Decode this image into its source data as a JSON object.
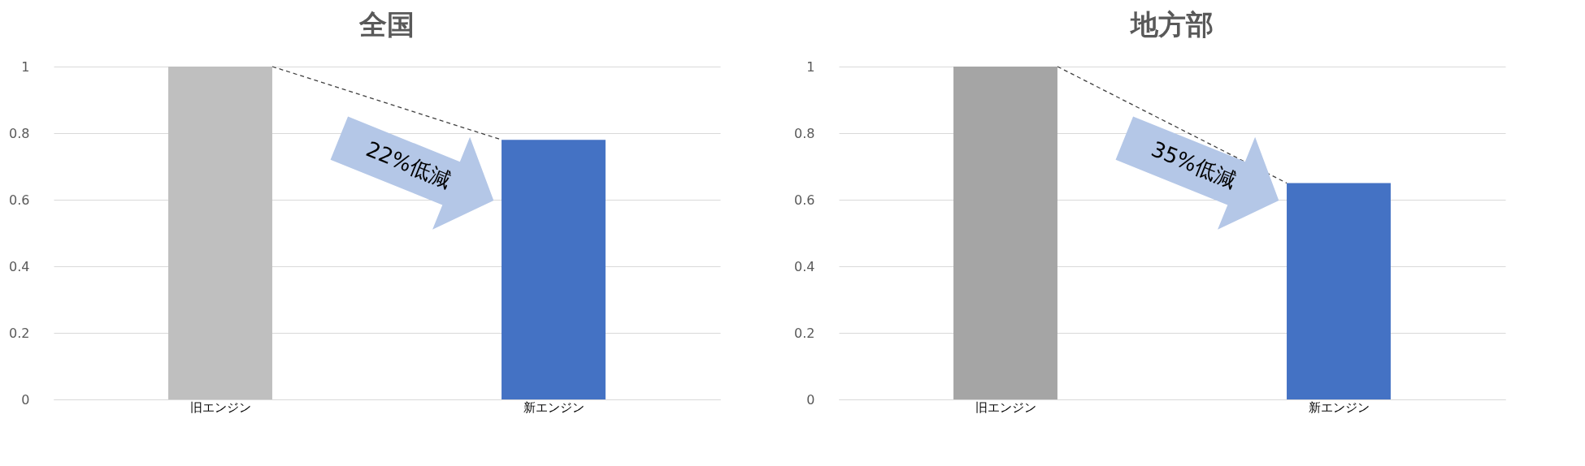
{
  "chart_data": [
    {
      "type": "bar",
      "title": "全国",
      "categories": [
        "旧エンジン",
        "新エンジン"
      ],
      "series": [
        {
          "type": "bar",
          "colors": [
            "#bfbfbf",
            "#4472c4"
          ],
          "values": [
            1,
            0.78
          ]
        }
      ],
      "line_style": "dashed",
      "ylim": [
        0,
        1
      ],
      "yticks": [
        0,
        0.2,
        0.4,
        0.6,
        0.8,
        1
      ],
      "grid": "y",
      "legend": false,
      "annotations": [
        "22%低減"
      ]
    },
    {
      "type": "bar",
      "title": "地方部",
      "categories": [
        "旧エンジン",
        "新エンジン"
      ],
      "series": [
        {
          "type": "bar",
          "colors": [
            "#a5a5a5",
            "#4472c4"
          ],
          "values": [
            1,
            0.65
          ]
        }
      ],
      "line_style": "dashed",
      "ylim": [
        0,
        1
      ],
      "yticks": [
        0,
        0.2,
        0.4,
        0.6,
        0.8,
        1
      ],
      "grid": "y",
      "legend": false,
      "annotations": [
        "35%低減"
      ]
    }
  ]
}
